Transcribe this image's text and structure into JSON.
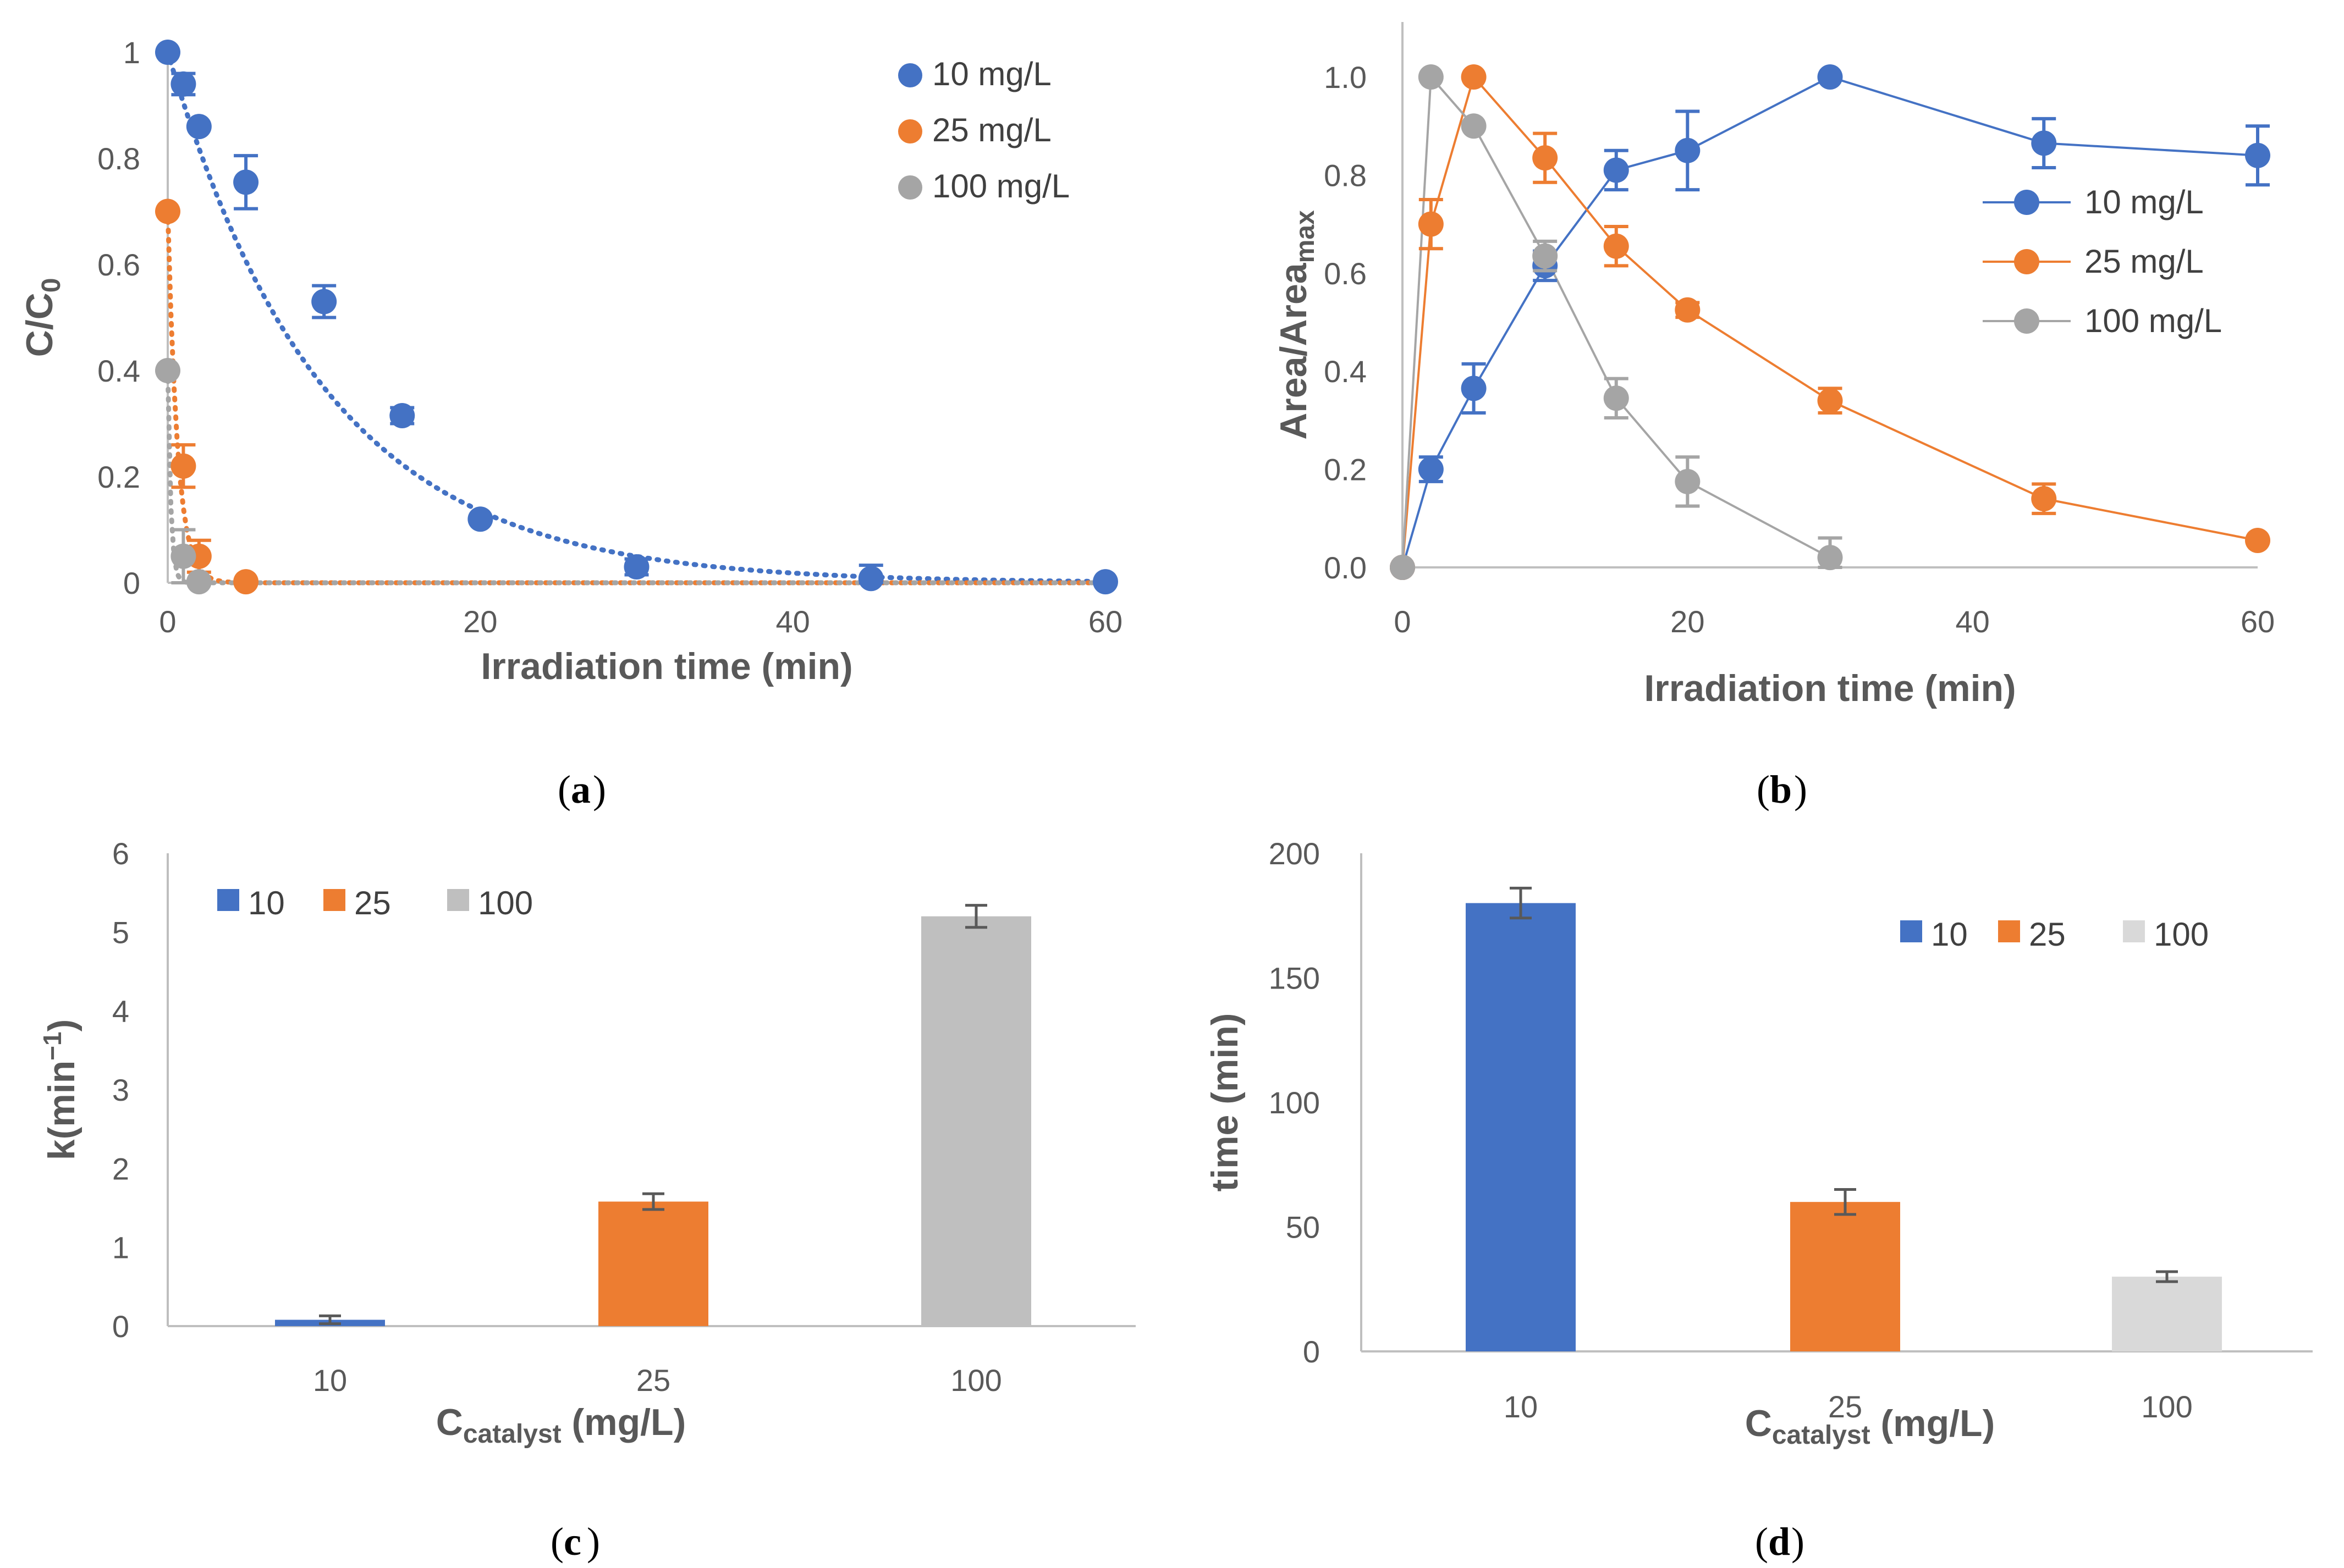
{
  "colors": {
    "blue": "#4472C4",
    "orange": "#ED7D31",
    "gray": "#A5A5A5",
    "gray_c": "#BFBFBF",
    "gray_d": "#D9D9D9",
    "axis": "#BFBFBF",
    "text": "#595959",
    "err_c": "#595959"
  },
  "chart_data": [
    {
      "id": "a",
      "type": "scatter",
      "panel_label": "a",
      "xlabel": "Irradiation time (min)",
      "ylabel_main": "C/C",
      "ylabel_sub": "0",
      "xlim": [
        0,
        60
      ],
      "ylim": [
        0,
        1
      ],
      "xticks": [
        0,
        20,
        40,
        60
      ],
      "xtick_labels": [
        "0",
        "20",
        "40",
        "60"
      ],
      "yticks": [
        0,
        0.2,
        0.4,
        0.6,
        0.8,
        1
      ],
      "ytick_labels": [
        "0",
        "0.2",
        "0.4",
        "0.6",
        "0.8",
        "1"
      ],
      "legend_position": "top-right",
      "trendline": "exponential (dotted)",
      "series": [
        {
          "name": "10 mg/L",
          "color": "blue",
          "x": [
            0,
            1,
            2,
            5,
            10,
            15,
            20,
            30,
            45,
            60
          ],
          "y": [
            1.0,
            0.94,
            0.86,
            0.755,
            0.53,
            0.315,
            0.12,
            0.03,
            0.008,
            0.002
          ],
          "err": [
            0,
            0.02,
            0.0,
            0.05,
            0.03,
            0.015,
            0.0,
            0.015,
            0.025,
            0.0
          ],
          "fit_k": 0.1
        },
        {
          "name": "25 mg/L",
          "color": "orange",
          "x": [
            0,
            1,
            2,
            5
          ],
          "y": [
            0.7,
            0.22,
            0.05,
            0.002
          ],
          "err": [
            0,
            0.04,
            0.03,
            0.0
          ],
          "fit_k": 1.6
        },
        {
          "name": "100 mg/L",
          "color": "gray",
          "x": [
            0,
            1,
            2
          ],
          "y": [
            0.4,
            0.05,
            0.002
          ],
          "err": [
            0,
            0.05,
            0.0
          ],
          "fit_k": 5.2
        }
      ]
    },
    {
      "id": "b",
      "type": "line",
      "panel_label": "b",
      "xlabel": "Irradiation time (min)",
      "ylabel_main": "Area/Area",
      "ylabel_sub": "max",
      "xlim": [
        0,
        60
      ],
      "ylim": [
        0,
        1.0
      ],
      "xticks": [
        0,
        20,
        40,
        60
      ],
      "xtick_labels": [
        "0",
        "20",
        "40",
        "60"
      ],
      "yticks": [
        0,
        0.2,
        0.4,
        0.6,
        0.8,
        1.0
      ],
      "ytick_labels": [
        "0.0",
        "0.2",
        "0.4",
        "0.6",
        "0.8",
        "1.0"
      ],
      "legend_position": "right",
      "series": [
        {
          "name": "10 mg/L",
          "color": "blue",
          "x": [
            0,
            2,
            5,
            10,
            15,
            20,
            30,
            45,
            60
          ],
          "y": [
            0.0,
            0.2,
            0.365,
            0.615,
            0.81,
            0.85,
            1.0,
            0.865,
            0.84
          ],
          "err": [
            0,
            0.025,
            0.05,
            0.03,
            0.04,
            0.08,
            0.0,
            0.05,
            0.06
          ]
        },
        {
          "name": "25 mg/L",
          "color": "orange",
          "x": [
            0,
            2,
            5,
            10,
            15,
            20,
            30,
            45,
            60
          ],
          "y": [
            0.0,
            0.7,
            1.0,
            0.835,
            0.655,
            0.525,
            0.34,
            0.14,
            0.055
          ],
          "err": [
            0,
            0.05,
            0.0,
            0.05,
            0.04,
            0.015,
            0.025,
            0.03,
            0.0
          ]
        },
        {
          "name": "100 mg/L",
          "color": "gray",
          "x": [
            0,
            2,
            5,
            10,
            15,
            20,
            30
          ],
          "y": [
            0.0,
            1.0,
            0.9,
            0.635,
            0.345,
            0.175,
            0.02
          ],
          "err": [
            0,
            0.0,
            0.0,
            0.03,
            0.04,
            0.05,
            0.04
          ]
        }
      ]
    },
    {
      "id": "c",
      "type": "bar",
      "panel_label": "c",
      "xlabel_main": "C",
      "xlabel_sub": "catalyst",
      "xlabel_rest": " (mg/L)",
      "ylabel": "k(min",
      "ylabel_sup": "−1",
      "ylabel_close": ")",
      "categories": [
        "10",
        "25",
        "100"
      ],
      "ylim": [
        0,
        6
      ],
      "yticks": [
        0,
        1,
        2,
        3,
        4,
        5,
        6
      ],
      "ytick_labels": [
        "0",
        "1",
        "2",
        "3",
        "4",
        "5",
        "6"
      ],
      "legend_position": "top-left",
      "series": [
        {
          "name": "10",
          "color": "blue",
          "value": 0.08,
          "err": 0.05
        },
        {
          "name": "25",
          "color": "orange",
          "value": 1.58,
          "err": 0.1
        },
        {
          "name": "100",
          "color": "gray_c",
          "value": 5.2,
          "err": 0.14
        }
      ]
    },
    {
      "id": "d",
      "type": "bar",
      "panel_label": "d",
      "xlabel_main": "C",
      "xlabel_sub": "catalyst",
      "xlabel_rest": " (mg/L)",
      "ylabel": "time (min)",
      "categories": [
        "10",
        "25",
        "100"
      ],
      "ylim": [
        0,
        200
      ],
      "yticks": [
        0,
        50,
        100,
        150,
        200
      ],
      "ytick_labels": [
        "0",
        "50",
        "100",
        "150",
        "200"
      ],
      "legend_position": "top-right",
      "series": [
        {
          "name": "10",
          "color": "blue",
          "value": 180,
          "err": 6
        },
        {
          "name": "25",
          "color": "orange",
          "value": 60,
          "err": 5
        },
        {
          "name": "100",
          "color": "gray_d",
          "value": 30,
          "err": 2
        }
      ]
    }
  ]
}
